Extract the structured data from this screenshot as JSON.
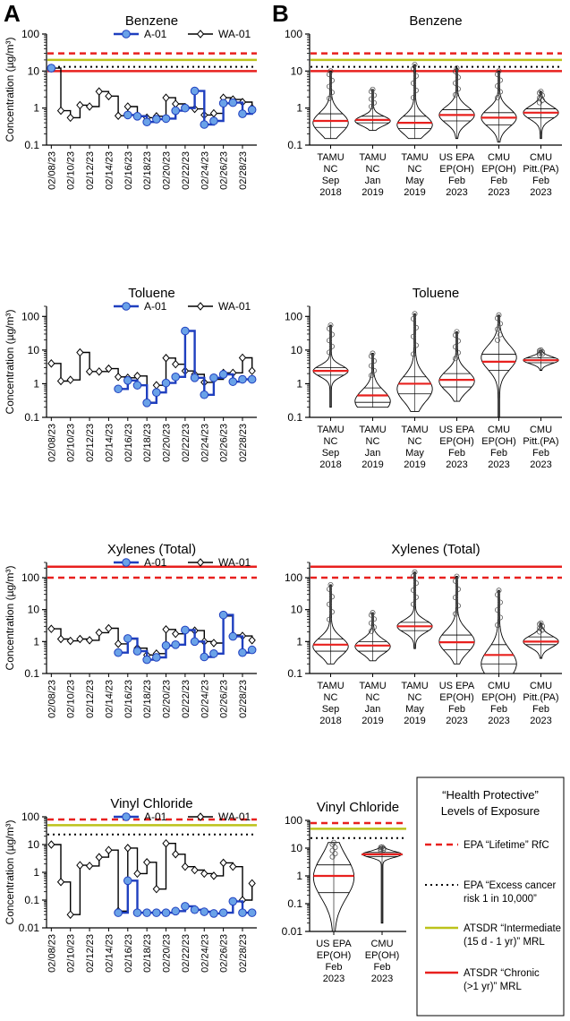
{
  "panel_labels": {
    "a": "A",
    "b": "B"
  },
  "colors": {
    "a01_fill": "#6aa2e8",
    "a01_line": "#1f3fbf",
    "epa_lifetime": "#e8201e",
    "atsdr_intermediate": "#bcc21a",
    "atsdr_chronic": "#e8201e",
    "median": "#e8201e",
    "axis": "#000000"
  },
  "legend": {
    "title_line1": "“Health Protective”",
    "title_line2": "Levels of Exposure",
    "items": [
      {
        "key": "epa_lifetime",
        "style": "dashed",
        "lines": [
          "EPA “Lifetime” RfC"
        ]
      },
      {
        "key": "epa_cancer",
        "style": "dotted",
        "lines": [
          "EPA “Excess cancer",
          "risk 1 in 10,000”"
        ]
      },
      {
        "key": "atsdr_intermediate",
        "style": "solid-olive",
        "lines": [
          "ATSDR “Intermediate",
          "(15 d - 1 yr)” MRL"
        ]
      },
      {
        "key": "atsdr_chronic",
        "style": "solid-red",
        "lines": [
          "ATSDR “Chronic",
          "(>1 yr)” MRL"
        ]
      }
    ]
  },
  "chart_data": [
    {
      "id": "A-benzene",
      "type": "line",
      "title": "Benzene",
      "ylabel": "Concentration (µg/m³)",
      "yscale": "log",
      "ylim": [
        0.1,
        100
      ],
      "yticks": [
        0.1,
        1,
        10,
        100
      ],
      "ytick_labels": [
        "0.1",
        "1",
        "10",
        "100"
      ],
      "x": [
        "02/08/23",
        "02/09/23",
        "02/10/23",
        "02/11/23",
        "02/12/23",
        "02/13/23",
        "02/14/23",
        "02/15/23",
        "02/16/23",
        "02/17/23",
        "02/18/23",
        "02/19/23",
        "02/20/23",
        "02/21/23",
        "02/22/23",
        "02/23/23",
        "02/24/23",
        "02/25/23",
        "02/26/23",
        "02/27/23",
        "02/28/23",
        "03/01/23"
      ],
      "xtick_labels": [
        "02/08/23",
        "02/10/23",
        "02/12/23",
        "02/14/23",
        "02/16/23",
        "02/18/23",
        "02/20/23",
        "02/22/23",
        "02/24/23",
        "02/26/23",
        "02/28/23"
      ],
      "series": [
        {
          "name": "A-01",
          "values": [
            12,
            null,
            null,
            null,
            null,
            null,
            null,
            null,
            0.65,
            0.6,
            0.42,
            0.5,
            0.52,
            0.85,
            1.0,
            2.9,
            0.36,
            0.45,
            1.35,
            1.4,
            0.7,
            0.9
          ]
        },
        {
          "name": "WA-01",
          "values": [
            12,
            0.85,
            0.55,
            1.2,
            1.1,
            2.8,
            2.1,
            0.62,
            1.1,
            0.62,
            0.55,
            0.6,
            1.9,
            1.3,
            1.05,
            0.95,
            0.65,
            0.72,
            1.9,
            1.7,
            1.45,
            1.0
          ]
        }
      ],
      "reference_lines": {
        "epa_lifetime": 30,
        "epa_cancer": 13,
        "atsdr_intermediate": 20,
        "atsdr_chronic": 10
      }
    },
    {
      "id": "A-toluene",
      "type": "line",
      "title": "Toluene",
      "ylabel": "Concentration (µg/m³)",
      "yscale": "log",
      "ylim": [
        0.1,
        200
      ],
      "yticks": [
        0.1,
        1,
        10,
        100
      ],
      "ytick_labels": [
        "0.1",
        "1",
        "10",
        "100"
      ],
      "x": [
        "02/08/23",
        "02/09/23",
        "02/10/23",
        "02/11/23",
        "02/12/23",
        "02/13/23",
        "02/14/23",
        "02/15/23",
        "02/16/23",
        "02/17/23",
        "02/18/23",
        "02/19/23",
        "02/20/23",
        "02/21/23",
        "02/22/23",
        "02/23/23",
        "02/24/23",
        "02/25/23",
        "02/26/23",
        "02/27/23",
        "02/28/23",
        "03/01/23"
      ],
      "xtick_labels": [
        "02/08/23",
        "02/10/23",
        "02/12/23",
        "02/14/23",
        "02/16/23",
        "02/18/23",
        "02/20/23",
        "02/22/23",
        "02/24/23",
        "02/26/23",
        "02/28/23"
      ],
      "series": [
        {
          "name": "A-01",
          "values": [
            null,
            null,
            null,
            null,
            null,
            null,
            null,
            0.7,
            1.25,
            0.9,
            0.27,
            0.55,
            1.05,
            1.6,
            37,
            1.5,
            0.47,
            1.5,
            1.9,
            1.15,
            1.35,
            1.35
          ]
        },
        {
          "name": "WA-01",
          "values": [
            4,
            1.2,
            1.3,
            8.5,
            2.3,
            2.3,
            2.8,
            1.6,
            1.5,
            1.7,
            0.28,
            0.9,
            5.8,
            3.8,
            2.4,
            1.9,
            1.1,
            1.35,
            2.1,
            2.1,
            5.9,
            2.4
          ]
        }
      ],
      "reference_lines": {}
    },
    {
      "id": "A-xylenes",
      "type": "line",
      "title": "Xylenes (Total)",
      "ylabel": "Concentration (µg/m³)",
      "yscale": "log",
      "ylim": [
        0.1,
        300
      ],
      "yticks": [
        0.1,
        1,
        10,
        100
      ],
      "ytick_labels": [
        "0.1",
        "1",
        "10",
        "100"
      ],
      "x": [
        "02/08/23",
        "02/09/23",
        "02/10/23",
        "02/11/23",
        "02/12/23",
        "02/13/23",
        "02/14/23",
        "02/15/23",
        "02/16/23",
        "02/17/23",
        "02/18/23",
        "02/19/23",
        "02/20/23",
        "02/21/23",
        "02/22/23",
        "02/23/23",
        "02/24/23",
        "02/25/23",
        "02/26/23",
        "02/27/23",
        "02/28/23",
        "03/01/23"
      ],
      "xtick_labels": [
        "02/08/23",
        "02/10/23",
        "02/12/23",
        "02/14/23",
        "02/16/23",
        "02/18/23",
        "02/20/23",
        "02/22/23",
        "02/24/23",
        "02/26/23",
        "02/28/23"
      ],
      "series": [
        {
          "name": "A-01",
          "values": [
            null,
            null,
            null,
            null,
            null,
            null,
            null,
            0.45,
            1.25,
            0.5,
            0.27,
            0.32,
            0.75,
            0.8,
            2.3,
            1.0,
            0.33,
            0.42,
            6.8,
            1.45,
            0.45,
            0.55
          ]
        },
        {
          "name": "WA-01",
          "values": [
            2.5,
            1.2,
            1.05,
            1.2,
            1.1,
            1.9,
            2.6,
            0.85,
            1.2,
            0.62,
            0.38,
            0.42,
            2.4,
            1.75,
            2.2,
            2.2,
            1.0,
            0.9,
            6.3,
            1.6,
            1.5,
            1.1
          ]
        }
      ],
      "reference_lines": {
        "epa_lifetime": 100,
        "atsdr_chronic": 220
      }
    },
    {
      "id": "A-vinyl-chloride",
      "type": "line",
      "title": "Vinyl Chloride",
      "ylabel": "Concentration (µg/m³)",
      "yscale": "log",
      "ylim": [
        0.01,
        100
      ],
      "yticks": [
        0.01,
        0.1,
        1,
        10,
        100
      ],
      "ytick_labels": [
        "0.01",
        "0.1",
        "1",
        "10",
        "100"
      ],
      "x": [
        "02/08/23",
        "02/09/23",
        "02/10/23",
        "02/11/23",
        "02/12/23",
        "02/13/23",
        "02/14/23",
        "02/15/23",
        "02/16/23",
        "02/17/23",
        "02/18/23",
        "02/19/23",
        "02/20/23",
        "02/21/23",
        "02/22/23",
        "02/23/23",
        "02/24/23",
        "02/25/23",
        "02/26/23",
        "02/27/23",
        "02/28/23",
        "03/01/23"
      ],
      "xtick_labels": [
        "02/08/23",
        "02/10/23",
        "02/12/23",
        "02/14/23",
        "02/16/23",
        "02/18/23",
        "02/20/23",
        "02/22/23",
        "02/24/23",
        "02/26/23",
        "02/28/23"
      ],
      "series": [
        {
          "name": "A-01",
          "values": [
            null,
            null,
            null,
            null,
            null,
            null,
            null,
            0.035,
            0.5,
            0.035,
            0.035,
            0.035,
            0.035,
            0.04,
            0.06,
            0.045,
            0.038,
            0.033,
            0.035,
            0.09,
            0.035,
            0.035
          ]
        },
        {
          "name": "WA-01",
          "values": [
            10,
            0.45,
            0.03,
            1.8,
            1.7,
            3.5,
            6.3,
            0.04,
            7.5,
            0.9,
            2.3,
            0.25,
            11,
            4.5,
            1.6,
            1.2,
            0.9,
            0.75,
            2.2,
            1.6,
            0.1,
            0.4
          ]
        }
      ],
      "reference_lines": {
        "epa_lifetime": 80,
        "epa_cancer": 23,
        "atsdr_intermediate": 50
      }
    },
    {
      "id": "B-benzene",
      "type": "violin",
      "title": "Benzene",
      "yscale": "log",
      "ylim": [
        0.1,
        100
      ],
      "yticks": [
        0.1,
        1,
        10,
        100
      ],
      "ytick_labels": [
        "0.1",
        "1",
        "10",
        "100"
      ],
      "categories": [
        [
          "TAMU",
          "NC",
          "Sep",
          "2018"
        ],
        [
          "TAMU",
          "NC",
          "Jan",
          "2019"
        ],
        [
          "TAMU",
          "NC",
          "May",
          "2019"
        ],
        [
          "US EPA",
          "EP(OH)",
          "Feb",
          "2023"
        ],
        [
          "CMU",
          "EP(OH)",
          "Feb",
          "2023"
        ],
        [
          "CMU",
          "Pitt.(PA)",
          "Feb",
          "2023"
        ]
      ],
      "violins": [
        {
          "min": 0.15,
          "q1": 0.3,
          "median": 0.45,
          "q3": 0.7,
          "max": 10,
          "mode": 0.4
        },
        {
          "min": 0.25,
          "q1": 0.4,
          "median": 0.48,
          "q3": 0.6,
          "max": 3.2,
          "mode": 0.45
        },
        {
          "min": 0.15,
          "q1": 0.28,
          "median": 0.4,
          "q3": 0.6,
          "max": 15,
          "mode": 0.35
        },
        {
          "min": 0.15,
          "q1": 0.45,
          "median": 0.65,
          "q3": 0.9,
          "max": 12,
          "mode": 0.65
        },
        {
          "min": 0.12,
          "q1": 0.35,
          "median": 0.55,
          "q3": 0.75,
          "max": 10,
          "mode": 0.55
        },
        {
          "min": 0.15,
          "q1": 0.55,
          "median": 0.75,
          "q3": 0.95,
          "max": 2.8,
          "mode": 0.75
        }
      ],
      "reference_lines": {
        "epa_lifetime": 30,
        "epa_cancer": 13,
        "atsdr_intermediate": 20,
        "atsdr_chronic": 10
      }
    },
    {
      "id": "B-toluene",
      "type": "violin",
      "title": "Toluene",
      "yscale": "log",
      "ylim": [
        0.1,
        200
      ],
      "yticks": [
        0.1,
        1,
        10,
        100
      ],
      "ytick_labels": [
        "0.1",
        "1",
        "10",
        "100"
      ],
      "categories": [
        [
          "TAMU",
          "NC",
          "Sep",
          "2018"
        ],
        [
          "TAMU",
          "NC",
          "Jan",
          "2019"
        ],
        [
          "TAMU",
          "NC",
          "May",
          "2019"
        ],
        [
          "US EPA",
          "EP(OH)",
          "Feb",
          "2023"
        ],
        [
          "CMU",
          "EP(OH)",
          "Feb",
          "2023"
        ],
        [
          "CMU",
          "Pitt.(PA)",
          "Feb",
          "2023"
        ]
      ],
      "violins": [
        {
          "min": 0.2,
          "q1": 1.8,
          "median": 2.4,
          "q3": 3.0,
          "max": 55,
          "mode": 2.4
        },
        {
          "min": 0.2,
          "q1": 0.28,
          "median": 0.45,
          "q3": 0.75,
          "max": 8,
          "mode": 0.3
        },
        {
          "min": 0.15,
          "q1": 0.5,
          "median": 1.0,
          "q3": 1.6,
          "max": 120,
          "mode": 0.7
        },
        {
          "min": 0.3,
          "q1": 0.8,
          "median": 1.3,
          "q3": 2.0,
          "max": 35,
          "mode": 1.2
        },
        {
          "min": 0.1,
          "q1": 2.5,
          "median": 4.5,
          "q3": 7.5,
          "max": 110,
          "mode": 6
        },
        {
          "min": 2.5,
          "q1": 4.2,
          "median": 5.0,
          "q3": 5.8,
          "max": 10,
          "mode": 5
        }
      ],
      "reference_lines": {}
    },
    {
      "id": "B-xylenes",
      "type": "violin",
      "title": "Xylenes (Total)",
      "yscale": "log",
      "ylim": [
        0.1,
        300
      ],
      "yticks": [
        0.1,
        1,
        10,
        100
      ],
      "ytick_labels": [
        "0.1",
        "1",
        "10",
        "100"
      ],
      "categories": [
        [
          "TAMU",
          "NC",
          "Sep",
          "2018"
        ],
        [
          "TAMU",
          "NC",
          "Jan",
          "2019"
        ],
        [
          "TAMU",
          "NC",
          "May",
          "2019"
        ],
        [
          "US EPA",
          "EP(OH)",
          "Feb",
          "2023"
        ],
        [
          "CMU",
          "EP(OH)",
          "Feb",
          "2023"
        ],
        [
          "CMU",
          "Pitt.(PA)",
          "Feb",
          "2023"
        ]
      ],
      "violins": [
        {
          "min": 0.2,
          "q1": 0.5,
          "median": 0.8,
          "q3": 1.2,
          "max": 60,
          "mode": 0.7
        },
        {
          "min": 0.25,
          "q1": 0.5,
          "median": 0.75,
          "q3": 1.0,
          "max": 8,
          "mode": 0.7
        },
        {
          "min": 0.6,
          "q1": 2.2,
          "median": 3.0,
          "q3": 4.0,
          "max": 150,
          "mode": 3.0
        },
        {
          "min": 0.2,
          "q1": 0.55,
          "median": 0.95,
          "q3": 1.6,
          "max": 110,
          "mode": 1.0
        },
        {
          "min": 0.1,
          "q1": 0.2,
          "median": 0.38,
          "q3": 0.8,
          "max": 40,
          "mode": 0.2
        },
        {
          "min": 0.3,
          "q1": 0.8,
          "median": 1.0,
          "q3": 1.4,
          "max": 3.8,
          "mode": 1.0
        }
      ],
      "reference_lines": {
        "epa_lifetime": 100,
        "atsdr_chronic": 220
      }
    },
    {
      "id": "B-vinyl-chloride",
      "type": "violin",
      "title": "Vinyl Chloride",
      "yscale": "log",
      "ylim": [
        0.01,
        100
      ],
      "yticks": [
        0.01,
        0.1,
        1,
        10,
        100
      ],
      "ytick_labels": [
        "0.01",
        "0.1",
        "1",
        "10",
        "100"
      ],
      "categories": [
        [
          "US EPA",
          "EP(OH)",
          "Feb",
          "2023"
        ],
        [
          "CMU",
          "EP(OH)",
          "Feb",
          "2023"
        ]
      ],
      "violins": [
        {
          "min": 0.01,
          "q1": 0.25,
          "median": 1.0,
          "q3": 2.5,
          "max": 16,
          "mode": 0.9
        },
        {
          "min": 0.02,
          "q1": 5.0,
          "median": 6.0,
          "q3": 7.0,
          "max": 11,
          "mode": 6.0
        }
      ],
      "reference_lines": {
        "epa_lifetime": 80,
        "epa_cancer": 23,
        "atsdr_intermediate": 50
      }
    }
  ]
}
